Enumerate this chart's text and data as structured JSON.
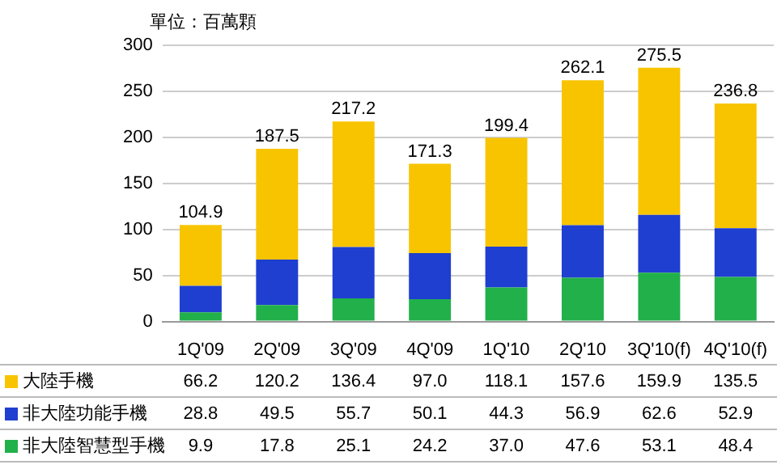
{
  "chart_data": {
    "type": "bar",
    "stacked": true,
    "ylabel": "單位：百萬顆",
    "categories": [
      "1Q'09",
      "2Q'09",
      "3Q'09",
      "4Q'09",
      "1Q'10",
      "2Q'10",
      "3Q'10(f)",
      "4Q'10(f)"
    ],
    "series": [
      {
        "name": "非大陸智慧型手機",
        "color": "#22b04a",
        "values": [
          9.9,
          17.8,
          25.1,
          24.2,
          37.0,
          47.6,
          53.1,
          48.4
        ],
        "value_labels": [
          "9.9",
          "17.8",
          "25.1",
          "24.2",
          "37.0",
          "47.6",
          "53.1",
          "48.4"
        ]
      },
      {
        "name": "非大陸功能手機",
        "color": "#1f3fd0",
        "values": [
          28.8,
          49.5,
          55.7,
          50.1,
          44.3,
          56.9,
          62.6,
          52.9
        ],
        "value_labels": [
          "28.8",
          "49.5",
          "55.7",
          "50.1",
          "44.3",
          "56.9",
          "62.6",
          "52.9"
        ]
      },
      {
        "name": "大陸手機",
        "color": "#f8c400",
        "values": [
          66.2,
          120.2,
          136.4,
          97.0,
          118.1,
          157.6,
          159.9,
          135.5
        ],
        "value_labels": [
          "66.2",
          "120.2",
          "136.4",
          "97.0",
          "118.1",
          "157.6",
          "159.9",
          "135.5"
        ]
      }
    ],
    "totals": [
      "104.9",
      "187.5",
      "217.2",
      "171.3",
      "199.4",
      "262.1",
      "275.5",
      "236.8"
    ],
    "ylim": [
      0,
      300
    ],
    "yticks": [
      0,
      50,
      100,
      150,
      200,
      250,
      300
    ],
    "grid": "y",
    "legend": "bottom"
  }
}
